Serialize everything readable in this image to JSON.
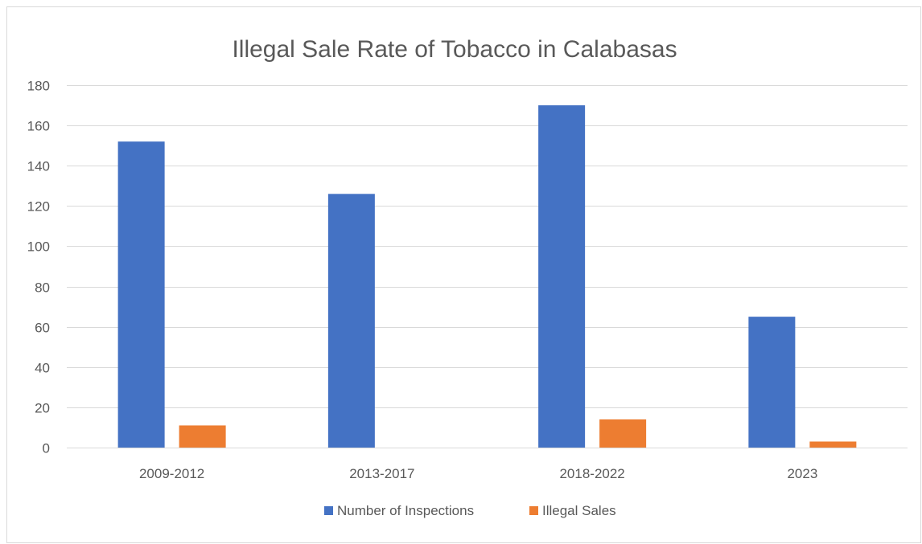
{
  "chart_data": {
    "type": "bar",
    "title": "Illegal Sale Rate of Tobacco in Calabasas",
    "xlabel": "",
    "ylabel": "",
    "categories": [
      "2009-2012",
      "2013-2017",
      "2018-2022",
      "2023"
    ],
    "series": [
      {
        "name": "Number of Inspections",
        "color": "#4472c4",
        "values": [
          152,
          126,
          170,
          65
        ]
      },
      {
        "name": "Illegal Sales",
        "color": "#ed7d31",
        "values": [
          11,
          0,
          14,
          3
        ]
      }
    ],
    "ylim": [
      0,
      180
    ],
    "yticks": [
      0,
      20,
      40,
      60,
      80,
      100,
      120,
      140,
      160,
      180
    ],
    "grid": true,
    "legend": "bottom"
  }
}
